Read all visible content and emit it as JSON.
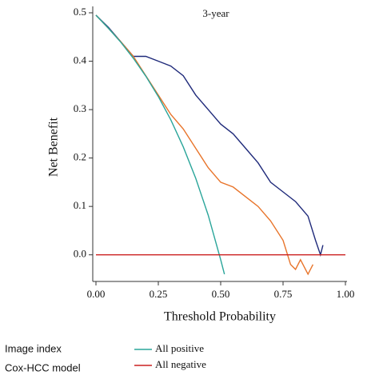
{
  "chart_data": {
    "type": "line",
    "title": "3-year",
    "x_label": "Threshold Probability",
    "y_label": "Net Benefit",
    "xlim": [
      0,
      1
    ],
    "ylim": [
      -0.055,
      0.5
    ],
    "xticks": [
      {
        "value": 0,
        "label": "0.00"
      },
      {
        "value": 0.25,
        "label": "0.25"
      },
      {
        "value": 0.5,
        "label": "0.50"
      },
      {
        "value": 0.75,
        "label": "0.75"
      },
      {
        "value": 1,
        "label": "1.00"
      }
    ],
    "yticks": [
      {
        "value": 0,
        "label": "0.0"
      },
      0.1,
      0.2,
      0.3,
      0.4,
      0.5
    ],
    "series": [
      {
        "name": "All positive",
        "color": "#2aa59a",
        "legend": true,
        "x": [
          0,
          0.05,
          0.1,
          0.15,
          0.2,
          0.25,
          0.3,
          0.35,
          0.4,
          0.45,
          0.5,
          0.515
        ],
        "values": [
          0.495,
          0.468,
          0.439,
          0.406,
          0.369,
          0.327,
          0.279,
          0.223,
          0.158,
          0.082,
          -0.01,
          -0.04
        ]
      },
      {
        "name": "All negative",
        "color": "#cc2020",
        "legend": true,
        "x": [
          0,
          1
        ],
        "values": [
          0,
          0
        ]
      },
      {
        "name": "Image index",
        "color": "#1f2a7a",
        "legend": false,
        "x": [
          0,
          0.05,
          0.1,
          0.15,
          0.2,
          0.25,
          0.3,
          0.35,
          0.4,
          0.45,
          0.5,
          0.55,
          0.6,
          0.65,
          0.7,
          0.75,
          0.8,
          0.85,
          0.88,
          0.9,
          0.91
        ],
        "values": [
          0.495,
          0.47,
          0.44,
          0.41,
          0.41,
          0.4,
          0.39,
          0.37,
          0.33,
          0.3,
          0.27,
          0.25,
          0.22,
          0.19,
          0.15,
          0.13,
          0.11,
          0.08,
          0.03,
          0,
          0.02
        ]
      },
      {
        "name": "Cox-HCC model",
        "color": "#e8742a",
        "legend": false,
        "x": [
          0,
          0.05,
          0.1,
          0.15,
          0.2,
          0.25,
          0.3,
          0.35,
          0.4,
          0.45,
          0.5,
          0.55,
          0.6,
          0.65,
          0.7,
          0.75,
          0.78,
          0.8,
          0.82,
          0.85,
          0.87
        ],
        "values": [
          0.495,
          0.468,
          0.44,
          0.41,
          0.37,
          0.33,
          0.29,
          0.26,
          0.22,
          0.18,
          0.15,
          0.14,
          0.12,
          0.1,
          0.07,
          0.03,
          -0.02,
          -0.03,
          -0.01,
          -0.04,
          -0.02
        ]
      }
    ]
  }
}
